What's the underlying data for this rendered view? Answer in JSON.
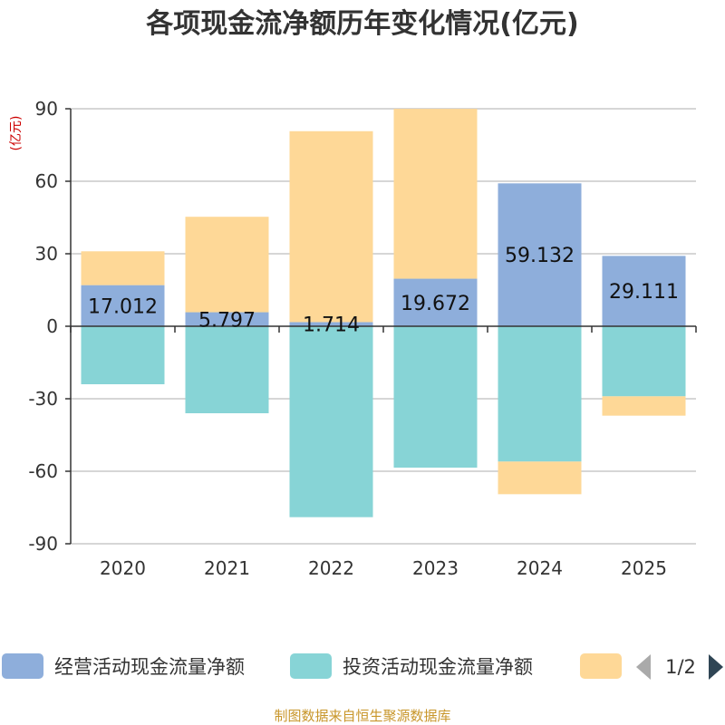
{
  "chart_data": {
    "type": "bar",
    "stacked": true,
    "title": "各项现金流净额历年变化情况(亿元)",
    "unit_label": "(亿元)",
    "categories": [
      "2020",
      "2021",
      "2022",
      "2023",
      "2024",
      "2025"
    ],
    "ylim": [
      -90,
      90
    ],
    "yticks": [
      90,
      60,
      30,
      0,
      -30,
      -60,
      -90
    ],
    "grid": true,
    "legend_position": "bottom",
    "series": [
      {
        "name": "经营活动现金流量净额",
        "color": "#8eaedb",
        "values": [
          17.012,
          5.797,
          1.714,
          19.672,
          59.132,
          29.111
        ],
        "labels": [
          "17.012",
          "5.797",
          "1.714",
          "19.672",
          "59.132",
          "29.111"
        ]
      },
      {
        "name": "投资活动现金流量净额",
        "color": "#87d4d6",
        "values": [
          -24,
          -36,
          -79,
          -58.5,
          -56,
          -29
        ]
      },
      {
        "name": "",
        "color": "#fed897",
        "values": [
          14,
          39.5,
          79,
          70.3,
          -13.5,
          -8
        ]
      }
    ]
  },
  "legend": {
    "pager": "1/2"
  },
  "source": "制图数据来自恒生聚源数据库"
}
